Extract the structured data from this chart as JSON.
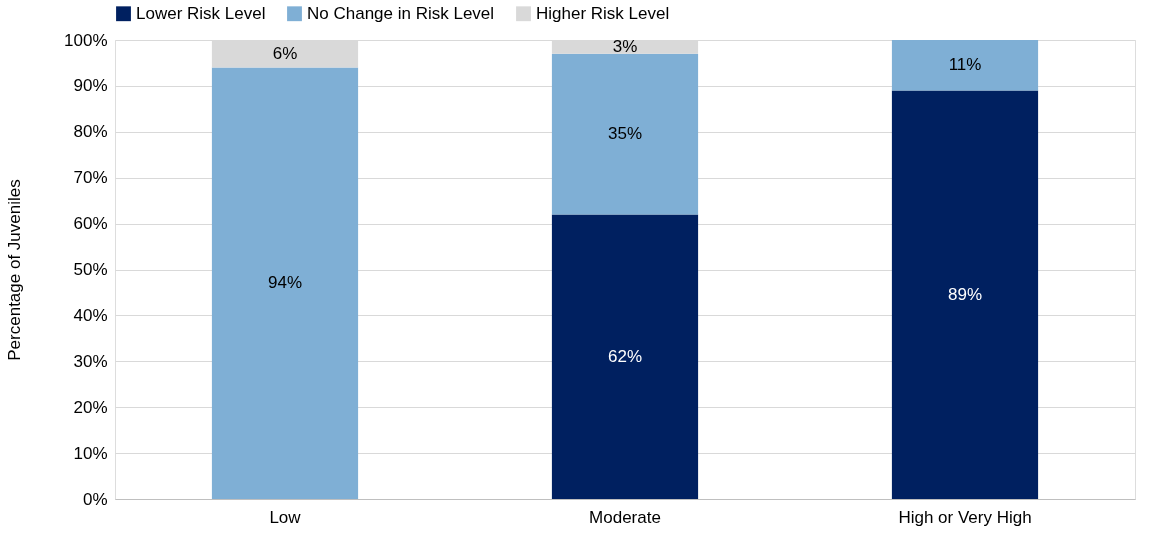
{
  "chart_data": {
    "type": "bar",
    "stacked": true,
    "ylabel": "Percentage of Juveniles",
    "categories": [
      "Low",
      "Moderate",
      "High or Very High"
    ],
    "series": [
      {
        "name": "Lower Risk Level",
        "color": "#002060",
        "values": [
          0,
          62,
          89
        ],
        "value_labels": [
          null,
          "62%",
          "89%"
        ]
      },
      {
        "name": "No Change in Risk Level",
        "color": "#7fafd5",
        "values": [
          94,
          35,
          11
        ],
        "value_labels": [
          "94%",
          "35%",
          "11%"
        ]
      },
      {
        "name": "Higher Risk Level",
        "color": "#d9d9d9",
        "values": [
          6,
          3,
          0
        ],
        "value_labels": [
          "6%",
          "3%",
          null
        ]
      }
    ],
    "ylim": [
      0,
      100
    ],
    "yticks": [
      {
        "value": 0,
        "label": "0%"
      },
      {
        "value": 10,
        "label": "10%"
      },
      {
        "value": 20,
        "label": "20%"
      },
      {
        "value": 30,
        "label": "30%"
      },
      {
        "value": 40,
        "label": "40%"
      },
      {
        "value": 50,
        "label": "50%"
      },
      {
        "value": 60,
        "label": "60%"
      },
      {
        "value": 70,
        "label": "70%"
      },
      {
        "value": 80,
        "label": "80%"
      },
      {
        "value": 90,
        "label": "90%"
      },
      {
        "value": 100,
        "label": "100%"
      }
    ],
    "grid": "y",
    "legend": "top"
  }
}
